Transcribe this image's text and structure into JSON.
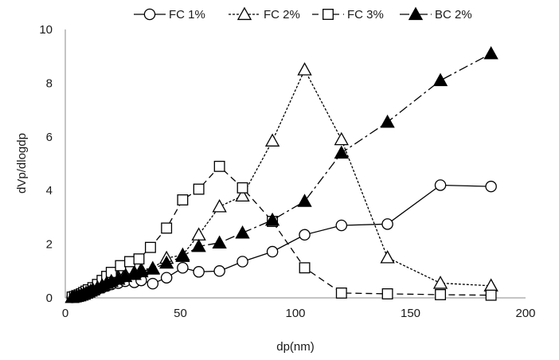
{
  "chart_data": {
    "type": "line",
    "title": "",
    "xlabel": "dp(nm)",
    "ylabel": "dVp/dlogdp",
    "xlim": [
      0,
      200
    ],
    "ylim": [
      0,
      10
    ],
    "xticks": [
      "0",
      "50",
      "100",
      "150",
      "200"
    ],
    "yticks": [
      "0",
      "2",
      "4",
      "6",
      "8",
      "10"
    ],
    "grid": false,
    "legend_position": "top",
    "series": [
      {
        "name": "FC 1%",
        "marker": "circle-open",
        "line_style": "solid",
        "color": "#000000",
        "points": [
          [
            3,
            0.02
          ],
          [
            4,
            0.04
          ],
          [
            5,
            0.06
          ],
          [
            6,
            0.08
          ],
          [
            7,
            0.1
          ],
          [
            8,
            0.13
          ],
          [
            9,
            0.16
          ],
          [
            10,
            0.2
          ],
          [
            11,
            0.24
          ],
          [
            12,
            0.27
          ],
          [
            14,
            0.32
          ],
          [
            16,
            0.38
          ],
          [
            18,
            0.44
          ],
          [
            20,
            0.5
          ],
          [
            23,
            0.55
          ],
          [
            26,
            0.62
          ],
          [
            30,
            0.58
          ],
          [
            33,
            0.65
          ],
          [
            38,
            0.53
          ],
          [
            44,
            0.75
          ],
          [
            51,
            1.12
          ],
          [
            58,
            0.97
          ],
          [
            67,
            1.0
          ],
          [
            77,
            1.35
          ],
          [
            90,
            1.72
          ],
          [
            104,
            2.35
          ],
          [
            120,
            2.7
          ],
          [
            140,
            2.75
          ],
          [
            163,
            4.2
          ],
          [
            185,
            4.15
          ]
        ]
      },
      {
        "name": "FC 2%",
        "marker": "triangle-open",
        "line_style": "dotted",
        "color": "#000000",
        "points": [
          [
            3,
            0.03
          ],
          [
            4,
            0.05
          ],
          [
            5,
            0.07
          ],
          [
            6,
            0.1
          ],
          [
            7,
            0.13
          ],
          [
            8,
            0.17
          ],
          [
            9,
            0.21
          ],
          [
            10,
            0.26
          ],
          [
            11,
            0.3
          ],
          [
            12,
            0.35
          ],
          [
            14,
            0.42
          ],
          [
            16,
            0.5
          ],
          [
            18,
            0.6
          ],
          [
            20,
            0.68
          ],
          [
            23,
            0.78
          ],
          [
            26,
            0.88
          ],
          [
            30,
            0.95
          ],
          [
            33,
            1.05
          ],
          [
            38,
            1.1
          ],
          [
            44,
            1.48
          ],
          [
            51,
            1.6
          ],
          [
            58,
            2.35
          ],
          [
            67,
            3.4
          ],
          [
            77,
            3.8
          ],
          [
            90,
            5.85
          ],
          [
            104,
            8.5
          ],
          [
            120,
            5.9
          ],
          [
            140,
            1.5
          ],
          [
            163,
            0.55
          ],
          [
            185,
            0.45
          ]
        ]
      },
      {
        "name": "FC 3%",
        "marker": "square-open",
        "line_style": "dashed",
        "color": "#000000",
        "points": [
          [
            3,
            0.03
          ],
          [
            4,
            0.05
          ],
          [
            5,
            0.08
          ],
          [
            6,
            0.11
          ],
          [
            7,
            0.15
          ],
          [
            8,
            0.2
          ],
          [
            9,
            0.25
          ],
          [
            10,
            0.3
          ],
          [
            12,
            0.38
          ],
          [
            14,
            0.5
          ],
          [
            16,
            0.65
          ],
          [
            18,
            0.8
          ],
          [
            20,
            0.95
          ],
          [
            24,
            1.2
          ],
          [
            28,
            1.35
          ],
          [
            32,
            1.45
          ],
          [
            37,
            1.88
          ],
          [
            44,
            2.6
          ],
          [
            51,
            3.65
          ],
          [
            58,
            4.05
          ],
          [
            67,
            4.9
          ],
          [
            77,
            4.1
          ],
          [
            90,
            2.85
          ],
          [
            104,
            1.12
          ],
          [
            120,
            0.18
          ],
          [
            140,
            0.15
          ],
          [
            163,
            0.12
          ],
          [
            185,
            0.1
          ]
        ]
      },
      {
        "name": "BC 2%",
        "marker": "triangle-filled",
        "line_style": "dash-dot",
        "color": "#000000",
        "points": [
          [
            3,
            0.02
          ],
          [
            4,
            0.04
          ],
          [
            5,
            0.06
          ],
          [
            6,
            0.08
          ],
          [
            7,
            0.11
          ],
          [
            8,
            0.14
          ],
          [
            9,
            0.18
          ],
          [
            10,
            0.22
          ],
          [
            11,
            0.26
          ],
          [
            12,
            0.3
          ],
          [
            14,
            0.38
          ],
          [
            16,
            0.46
          ],
          [
            18,
            0.55
          ],
          [
            20,
            0.62
          ],
          [
            23,
            0.7
          ],
          [
            26,
            0.8
          ],
          [
            30,
            0.88
          ],
          [
            33,
            0.98
          ],
          [
            38,
            1.08
          ],
          [
            44,
            1.3
          ],
          [
            51,
            1.55
          ],
          [
            58,
            1.92
          ],
          [
            67,
            2.05
          ],
          [
            77,
            2.42
          ],
          [
            90,
            2.9
          ],
          [
            104,
            3.6
          ],
          [
            120,
            5.4
          ],
          [
            140,
            6.55
          ],
          [
            163,
            8.1
          ],
          [
            185,
            9.1
          ]
        ]
      }
    ]
  }
}
